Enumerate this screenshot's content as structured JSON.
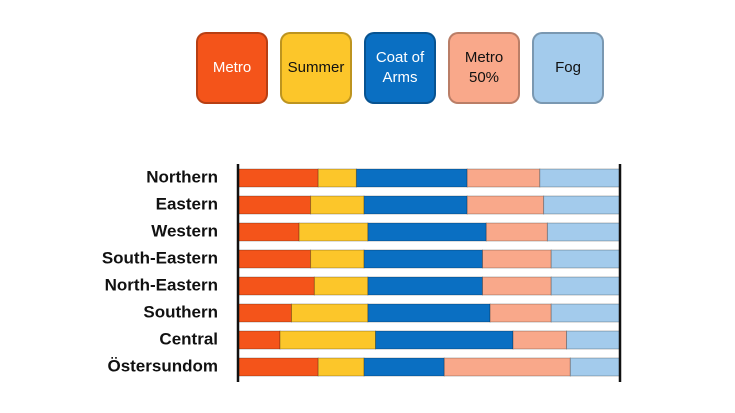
{
  "chart_data": {
    "type": "stacked-bar-horizontal",
    "categories": [
      "Northern",
      "Eastern",
      "Western",
      "South-Eastern",
      "North-Eastern",
      "Southern",
      "Central",
      "Östersundom"
    ],
    "series": [
      {
        "name": "Metro",
        "color": "#f4541a",
        "values": [
          21,
          19,
          16,
          19,
          20,
          14,
          11,
          21
        ]
      },
      {
        "name": "Summer",
        "color": "#fcc62a",
        "values": [
          10,
          14,
          18,
          14,
          14,
          20,
          25,
          12
        ]
      },
      {
        "name": "Coat of Arms",
        "color": "#0a6fc2",
        "values": [
          29,
          27,
          31,
          31,
          30,
          32,
          36,
          21
        ]
      },
      {
        "name": "Metro 50%",
        "color": "#f9a88a",
        "values": [
          19,
          20,
          16,
          18,
          18,
          16,
          14,
          33
        ]
      },
      {
        "name": "Fog",
        "color": "#a3cbec",
        "values": [
          21,
          20,
          19,
          18,
          18,
          18,
          14,
          13
        ]
      }
    ]
  }
}
